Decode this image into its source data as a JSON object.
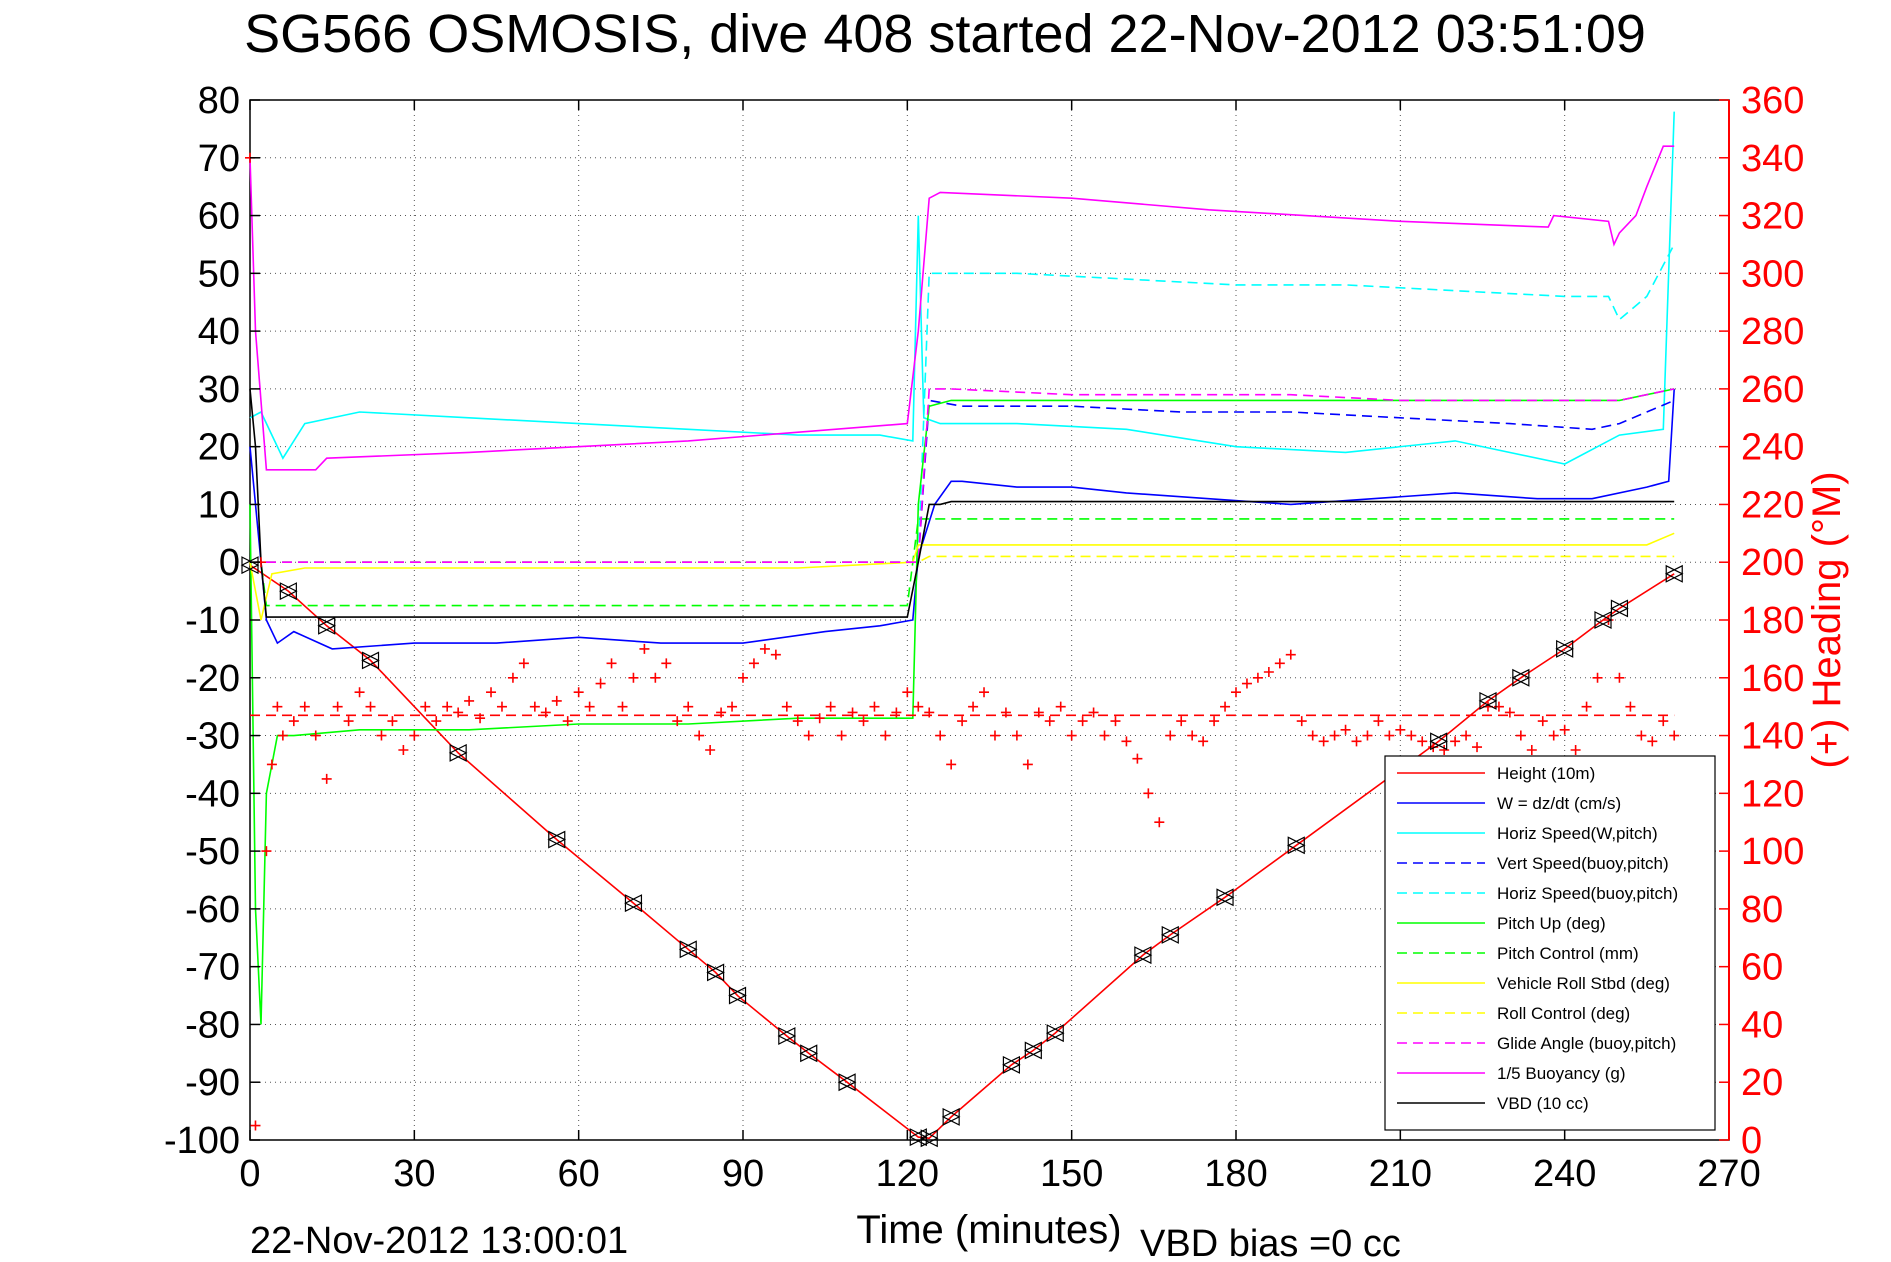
{
  "chart_data": {
    "type": "line",
    "title": "SG566 OSMOSIS, dive 408 started 22-Nov-2012 03:51:09",
    "xlabel": "Time (minutes)",
    "ylabel": "",
    "y2label": "(+) Heading (°M)",
    "xlim": [
      0,
      270
    ],
    "ylim": [
      -100,
      80
    ],
    "y2lim": [
      0,
      360
    ],
    "xticks": [
      "0",
      "30",
      "60",
      "90",
      "120",
      "150",
      "180",
      "210",
      "240",
      "270"
    ],
    "yticks": [
      "80",
      "70",
      "60",
      "50",
      "40",
      "30",
      "20",
      "10",
      "0",
      "-10",
      "-20",
      "-30",
      "-40",
      "-50",
      "-60",
      "-70",
      "-80",
      "-90",
      "-100"
    ],
    "y2ticks": [
      "360",
      "340",
      "320",
      "300",
      "280",
      "260",
      "240",
      "220",
      "200",
      "180",
      "160",
      "140",
      "120",
      "100",
      "80",
      "60",
      "40",
      "20",
      "0"
    ],
    "grid": true,
    "legend_position": "bottom-right",
    "footer_left": "22-Nov-2012 13:00:01",
    "footer_right": "VBD bias =0 cc",
    "colors": {
      "red": "#ff0000",
      "blue": "#0000ff",
      "cyan": "#00ffff",
      "green": "#00ff00",
      "yellow": "#ffff00",
      "magenta": "#ff00ff",
      "black": "#000000"
    },
    "series": [
      {
        "name": "Height (10m)",
        "color": "#ff0000",
        "style": "solid",
        "x": [
          0,
          7,
          14,
          22,
          38,
          56,
          70,
          80,
          85,
          89,
          98,
          102,
          109,
          122,
          124,
          128,
          139,
          143,
          147,
          163,
          168,
          178,
          191,
          217,
          226,
          232,
          240,
          247,
          250,
          260
        ],
        "y": [
          -0.5,
          -5,
          -11,
          -17,
          -33,
          -48,
          -59,
          -67,
          -71,
          -75,
          -82,
          -85,
          -90,
          -99.5,
          -99.7,
          -96,
          -87,
          -84.5,
          -81.5,
          -68,
          -64.5,
          -58,
          -49,
          -31,
          -24,
          -20,
          -15,
          -10,
          -8,
          -2
        ]
      },
      {
        "name": "W = dz/dt (cm/s)",
        "color": "#0000ff",
        "style": "solid",
        "x": [
          0,
          2,
          3,
          5,
          8,
          15,
          30,
          45,
          60,
          75,
          90,
          105,
          115,
          121,
          122,
          125,
          128,
          130,
          140,
          150,
          160,
          175,
          190,
          205,
          220,
          235,
          245,
          255,
          259,
          260
        ],
        "y": [
          20,
          0,
          -10,
          -14,
          -12,
          -15,
          -14,
          -14,
          -13,
          -14,
          -14,
          -12,
          -11,
          -10,
          1,
          10,
          14,
          14,
          13,
          13,
          12,
          11,
          10,
          11,
          12,
          11,
          11,
          13,
          14,
          30
        ]
      },
      {
        "name": "Horiz Speed(W,pitch)",
        "color": "#00ffff",
        "style": "solid",
        "x": [
          0,
          2,
          4,
          6,
          10,
          20,
          40,
          60,
          80,
          100,
          115,
          121,
          122,
          123,
          126,
          140,
          160,
          180,
          200,
          220,
          240,
          250,
          258,
          260
        ],
        "y": [
          25,
          26,
          22,
          18,
          24,
          26,
          25,
          24,
          23,
          22,
          22,
          21,
          60,
          25,
          24,
          24,
          23,
          20,
          19,
          21,
          17,
          22,
          23,
          78
        ]
      },
      {
        "name": "Vert Speed(buoy,pitch)",
        "color": "#0000ff",
        "style": "dash",
        "x": [
          0,
          2,
          122,
          124,
          130,
          150,
          170,
          190,
          210,
          230,
          245,
          250,
          255,
          260
        ],
        "y": [
          0,
          0,
          0,
          28,
          27,
          27,
          26,
          26,
          25,
          24,
          23,
          24,
          26,
          28
        ]
      },
      {
        "name": "Horiz Speed(buoy,pitch)",
        "color": "#00ffff",
        "style": "dash",
        "x": [
          0,
          2,
          122,
          124,
          128,
          140,
          160,
          180,
          200,
          220,
          240,
          248,
          250,
          255,
          260
        ],
        "y": [
          0,
          0,
          0,
          50,
          50,
          50,
          49,
          48,
          48,
          47,
          46,
          46,
          42,
          46,
          55
        ]
      },
      {
        "name": "Pitch Up (deg)",
        "color": "#00ff00",
        "style": "solid",
        "x": [
          0,
          1,
          2,
          3,
          5,
          8,
          20,
          40,
          60,
          80,
          100,
          121,
          122,
          124,
          128,
          150,
          170,
          190,
          210,
          230,
          250,
          260
        ],
        "y": [
          10,
          -60,
          -80,
          -40,
          -30,
          -30,
          -29,
          -29,
          -28,
          -28,
          -27,
          -27,
          10,
          27,
          28,
          28,
          28,
          28,
          28,
          28,
          28,
          30
        ]
      },
      {
        "name": "Pitch Control (mm)",
        "color": "#00ff00",
        "style": "dash",
        "x": [
          0,
          2,
          3,
          120,
          122,
          260
        ],
        "y": [
          0,
          0,
          -7.5,
          -7.5,
          7.5,
          7.5
        ]
      },
      {
        "name": "Vehicle Roll Stbd (deg)",
        "color": "#ffff00",
        "style": "solid",
        "x": [
          0,
          2,
          4,
          10,
          20,
          40,
          60,
          80,
          100,
          121,
          122,
          126,
          140,
          160,
          180,
          200,
          220,
          240,
          255,
          260
        ],
        "y": [
          0,
          -10,
          -2,
          -1,
          -1,
          -1,
          -1,
          -1,
          -1,
          0,
          3,
          3,
          3,
          3,
          3,
          3,
          3,
          3,
          3,
          5
        ]
      },
      {
        "name": "Roll Control (deg)",
        "color": "#ffff00",
        "style": "dash",
        "x": [
          0,
          122,
          124,
          260
        ],
        "y": [
          0,
          0,
          1,
          1
        ]
      },
      {
        "name": "Glide Angle (buoy,pitch)",
        "color": "#ff00ff",
        "style": "dash",
        "x": [
          0,
          2,
          122,
          124,
          128,
          150,
          170,
          190,
          210,
          230,
          250,
          260
        ],
        "y": [
          0,
          0,
          0,
          30,
          30,
          29,
          29,
          29,
          28,
          28,
          28,
          30
        ]
      },
      {
        "name": "1/5 Buoyancy (g)",
        "color": "#ff00ff",
        "style": "solid",
        "x": [
          0,
          1,
          3,
          12,
          14,
          40,
          80,
          120,
          122,
          124,
          126,
          150,
          175,
          210,
          237,
          238,
          248,
          249,
          250,
          253,
          255,
          258,
          260
        ],
        "y": [
          70,
          40,
          16,
          16,
          18,
          19,
          21,
          24,
          40,
          63,
          64,
          63,
          61,
          59,
          58,
          60,
          59,
          55,
          57,
          60,
          65,
          72,
          72
        ]
      },
      {
        "name": "VBD (10 cc)",
        "color": "#000000",
        "style": "solid",
        "x": [
          0,
          1,
          2,
          3,
          120,
          122,
          124,
          126,
          128,
          260
        ],
        "y": [
          30,
          20,
          0,
          -9.5,
          -9.5,
          0,
          10,
          10,
          10.5,
          10.5
        ]
      },
      {
        "name": "Pitch Control ref",
        "color": "#ff0000",
        "style": "dash",
        "axis": "y2",
        "x": [
          0,
          260
        ],
        "y": [
          147,
          147
        ]
      },
      {
        "name": "Heading",
        "color": "#ff0000",
        "style": "plus",
        "axis": "y2",
        "x": [
          0,
          1,
          2,
          3,
          4,
          5,
          6,
          8,
          10,
          12,
          14,
          16,
          18,
          20,
          22,
          24,
          26,
          28,
          30,
          32,
          34,
          36,
          38,
          40,
          42,
          44,
          46,
          48,
          50,
          52,
          54,
          56,
          58,
          60,
          62,
          64,
          66,
          68,
          70,
          72,
          74,
          76,
          78,
          80,
          82,
          84,
          86,
          88,
          90,
          92,
          94,
          96,
          98,
          100,
          102,
          104,
          106,
          108,
          110,
          112,
          114,
          116,
          118,
          120,
          122,
          124,
          126,
          128,
          130,
          132,
          134,
          136,
          138,
          140,
          142,
          144,
          146,
          148,
          150,
          152,
          154,
          156,
          158,
          160,
          162,
          164,
          166,
          168,
          170,
          172,
          174,
          176,
          178,
          180,
          182,
          184,
          186,
          188,
          190,
          192,
          194,
          196,
          198,
          200,
          202,
          204,
          206,
          208,
          210,
          212,
          214,
          216,
          218,
          220,
          222,
          224,
          226,
          228,
          230,
          232,
          234,
          236,
          238,
          240,
          242,
          244,
          246,
          248,
          250,
          252,
          254,
          256,
          258,
          260
        ],
        "y": [
          340,
          5,
          200,
          100,
          130,
          150,
          140,
          145,
          150,
          140,
          125,
          150,
          145,
          155,
          150,
          140,
          145,
          135,
          140,
          150,
          145,
          150,
          148,
          152,
          146,
          155,
          150,
          160,
          165,
          150,
          148,
          152,
          145,
          155,
          150,
          158,
          165,
          150,
          160,
          170,
          160,
          165,
          145,
          150,
          140,
          135,
          148,
          150,
          160,
          165,
          170,
          168,
          150,
          145,
          140,
          146,
          150,
          140,
          148,
          145,
          150,
          140,
          148,
          155,
          150,
          148,
          140,
          130,
          145,
          150,
          155,
          140,
          148,
          140,
          130,
          148,
          145,
          150,
          140,
          145,
          148,
          140,
          145,
          138,
          132,
          120,
          110,
          140,
          145,
          140,
          138,
          145,
          150,
          155,
          158,
          160,
          162,
          165,
          168,
          145,
          140,
          138,
          140,
          142,
          138,
          140,
          145,
          140,
          142,
          140,
          138,
          136,
          135,
          138,
          140,
          136,
          150,
          150,
          148,
          140,
          135,
          145,
          140,
          142,
          135,
          150,
          160,
          180,
          160,
          150,
          140,
          138,
          145,
          140
        ]
      }
    ]
  }
}
